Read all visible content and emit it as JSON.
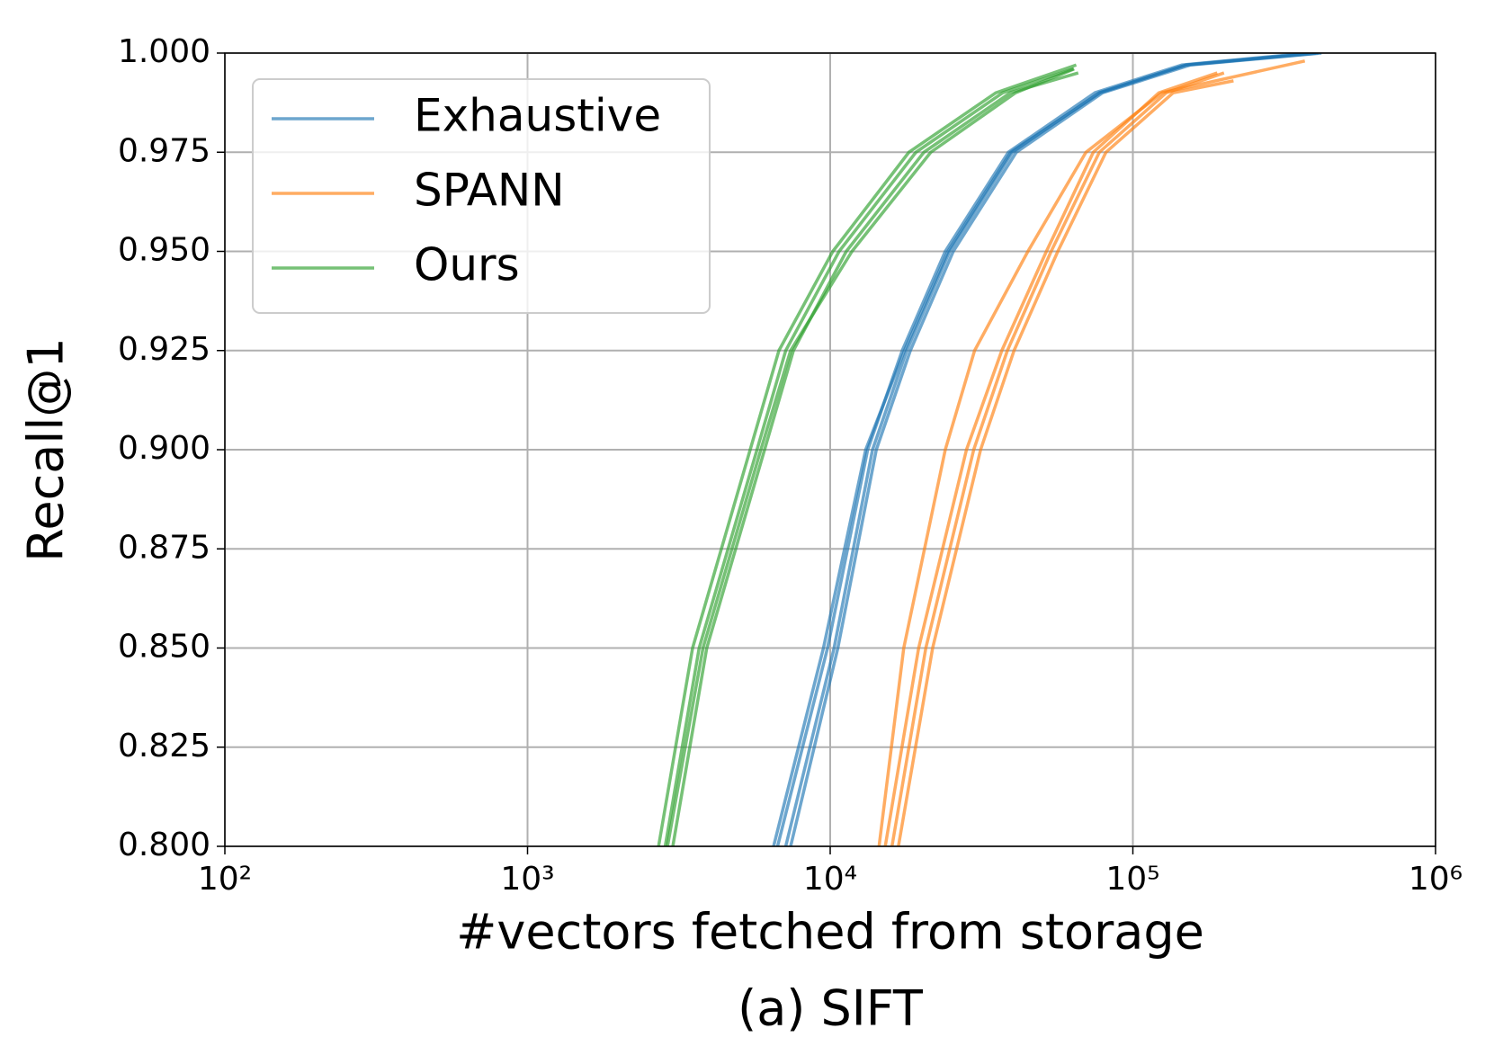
{
  "chart_data": {
    "type": "line",
    "xlabel": "#vectors fetched from storage",
    "ylabel": "Recall@1",
    "caption": "(a) SIFT",
    "xscale": "log",
    "xlim": [
      100,
      1000000
    ],
    "ylim": [
      0.8,
      1.0
    ],
    "xticks": [
      {
        "value": 100,
        "label": "10²"
      },
      {
        "value": 1000,
        "label": "10³"
      },
      {
        "value": 10000,
        "label": "10⁴"
      },
      {
        "value": 100000,
        "label": "10⁵"
      },
      {
        "value": 1000000,
        "label": "10⁶"
      }
    ],
    "yticks": [
      {
        "value": 0.8,
        "label": "0.800"
      },
      {
        "value": 0.825,
        "label": "0.825"
      },
      {
        "value": 0.85,
        "label": "0.850"
      },
      {
        "value": 0.875,
        "label": "0.875"
      },
      {
        "value": 0.9,
        "label": "0.900"
      },
      {
        "value": 0.925,
        "label": "0.925"
      },
      {
        "value": 0.95,
        "label": "0.950"
      },
      {
        "value": 0.975,
        "label": "0.975"
      },
      {
        "value": 1.0,
        "label": "1.000"
      }
    ],
    "grid": true,
    "legend": "upper left",
    "series": [
      {
        "name": "Exhaustive",
        "color": "#1f77b4",
        "runs": [
          {
            "x": [
              7130,
              10300,
              13800,
              17900,
              24800,
              40000,
              77400,
              149600,
              402000
            ],
            "values": [
              0.8,
              0.85,
              0.9,
              0.925,
              0.95,
              0.975,
              0.99,
              0.997,
              1.0
            ]
          },
          {
            "x": [
              6700,
              9800,
              13300,
              17300,
              24000,
              38800,
              75000,
              145000,
              380000
            ],
            "values": [
              0.8,
              0.85,
              0.9,
              0.925,
              0.95,
              0.975,
              0.99,
              0.997,
              1.0
            ]
          },
          {
            "x": [
              7400,
              10600,
              14200,
              18400,
              25500,
              41200,
              79500,
              155000,
              420000
            ],
            "values": [
              0.8,
              0.85,
              0.9,
              0.925,
              0.95,
              0.975,
              0.99,
              0.997,
              1.0
            ]
          },
          {
            "x": [
              6500,
              9500,
              13100,
              17600,
              24500,
              39500,
              78000,
              150000,
              410000
            ],
            "values": [
              0.8,
              0.85,
              0.9,
              0.925,
              0.95,
              0.975,
              0.99,
              0.997,
              1.0
            ]
          }
        ]
      },
      {
        "name": "SPANN",
        "color": "#ff7f0e",
        "runs": [
          {
            "x": [
              16000,
              20700,
              29800,
              38500,
              53700,
              77500,
              129000,
              200000
            ],
            "values": [
              0.8,
              0.85,
              0.9,
              0.925,
              0.95,
              0.975,
              0.99,
              0.995
            ]
          },
          {
            "x": [
              15200,
              19600,
              28200,
              36900,
              51800,
              74000,
              122000,
              190000
            ],
            "values": [
              0.8,
              0.85,
              0.9,
              0.925,
              0.95,
              0.975,
              0.99,
              0.995
            ]
          },
          {
            "x": [
              16800,
              21800,
              31400,
              40500,
              56500,
              81500,
              136000,
              215000
            ],
            "values": [
              0.8,
              0.85,
              0.9,
              0.925,
              0.95,
              0.975,
              0.99,
              0.993
            ]
          },
          {
            "x": [
              14500,
              17500,
              24000,
              30000,
              45000,
              70000,
              125000,
              370000
            ],
            "values": [
              0.8,
              0.85,
              0.9,
              0.925,
              0.95,
              0.975,
              0.99,
              0.998
            ]
          }
        ]
      },
      {
        "name": "Ours",
        "color": "#2ca02c",
        "runs": [
          {
            "x": [
              2850,
              3690,
              5730,
              7130,
              10700,
              19200,
              37200,
              63600
            ],
            "values": [
              0.8,
              0.85,
              0.9,
              0.925,
              0.95,
              0.975,
              0.99,
              0.996
            ]
          },
          {
            "x": [
              2710,
              3510,
              5440,
              6770,
              10200,
              18200,
              35300,
              65000
            ],
            "values": [
              0.8,
              0.85,
              0.9,
              0.925,
              0.95,
              0.975,
              0.99,
              0.997
            ]
          },
          {
            "x": [
              3020,
              3910,
              6070,
              7560,
              11300,
              20400,
              39400,
              66000
            ],
            "values": [
              0.8,
              0.85,
              0.9,
              0.925,
              0.95,
              0.975,
              0.99,
              0.995
            ]
          },
          {
            "x": [
              2900,
              3800,
              5900,
              7400,
              11800,
              21500,
              41000,
              64000
            ],
            "values": [
              0.8,
              0.85,
              0.9,
              0.925,
              0.95,
              0.975,
              0.99,
              0.996
            ]
          }
        ]
      }
    ]
  }
}
